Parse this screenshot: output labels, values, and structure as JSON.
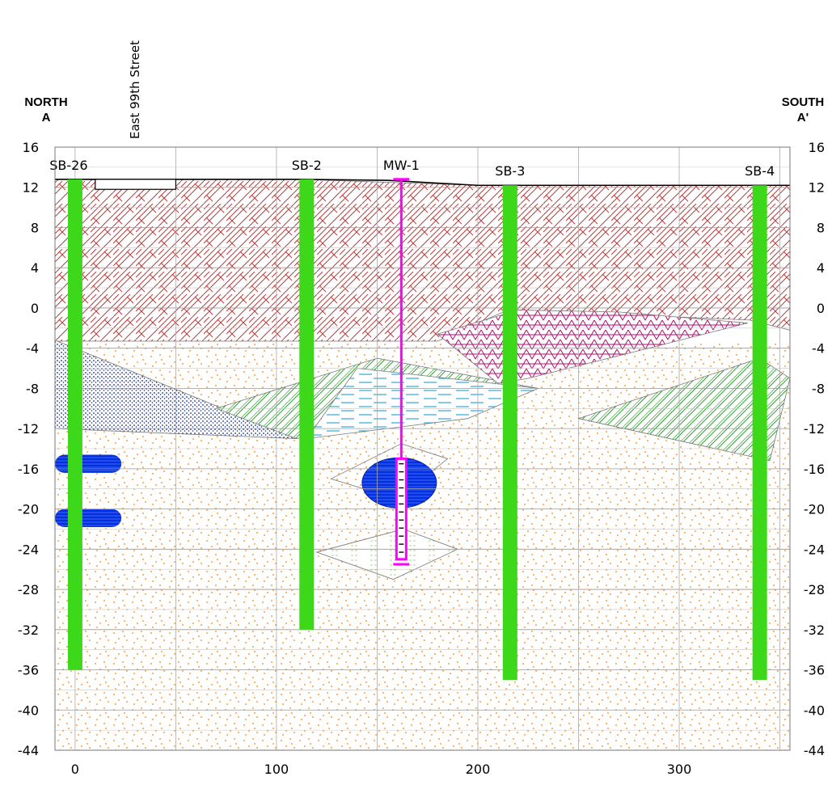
{
  "orientation": {
    "left": "NORTH",
    "left_marker": "A",
    "right": "SOUTH",
    "right_marker": "A'"
  },
  "street_label": "East 99th Street",
  "borings": [
    {
      "label": "SB-26",
      "x": 0,
      "top": 12.8,
      "bottom": -36
    },
    {
      "label": "SB-2",
      "x": 115,
      "top": 12.8,
      "bottom": -32
    },
    {
      "label": "SB-3",
      "x": 216,
      "top": 12.2,
      "bottom": -37
    },
    {
      "label": "SB-4",
      "x": 340,
      "top": 12.2,
      "bottom": -37
    }
  ],
  "well": {
    "label": "MW-1",
    "x": 162,
    "top": 12.8,
    "bottom": -25.5,
    "screen_top": -15,
    "screen_bottom": -25
  },
  "y_axis": {
    "min": -44,
    "max": 16,
    "ticks": [
      16,
      12,
      8,
      4,
      0,
      -4,
      -8,
      -12,
      -16,
      -20,
      -24,
      -28,
      -32,
      -36,
      -40,
      -44
    ]
  },
  "x_axis": {
    "min": -10,
    "max": 355,
    "ticks": [
      0,
      100,
      200,
      300
    ]
  },
  "colors": {
    "boring": "#3ed81a",
    "well": "#ff00ff",
    "fill_brick": "#b04040",
    "fill_sand": "#ff8000",
    "fill_clay": "#102a80",
    "fill_green": "#2e9c2e",
    "fill_magenta": "#b01070",
    "fill_water": "#30a8d8",
    "fill_blue": "#0030e0"
  }
}
